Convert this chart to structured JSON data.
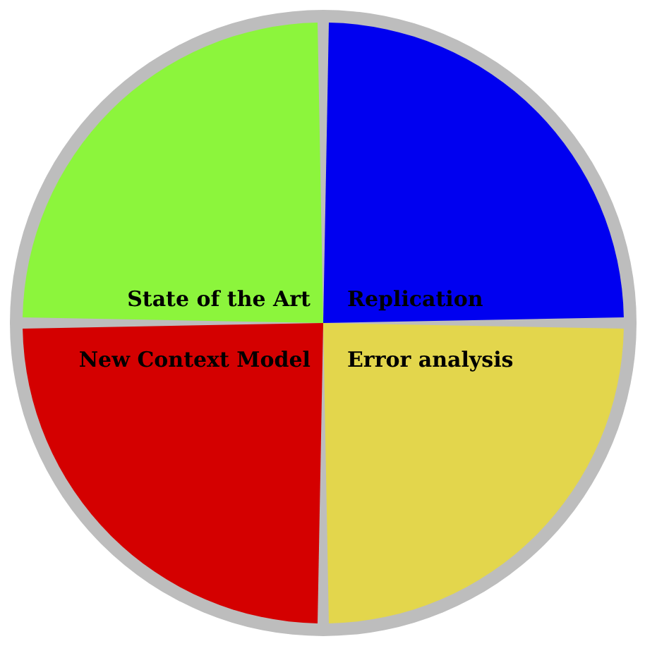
{
  "chart_data": {
    "type": "pie",
    "categories": [
      "Replication",
      "Error analysis",
      "New Context Model",
      "State of the Art"
    ],
    "values": [
      25,
      25,
      25,
      25
    ],
    "colors": [
      "#0000f0",
      "#e3d64c",
      "#d40000",
      "#8cf53c"
    ]
  }
}
